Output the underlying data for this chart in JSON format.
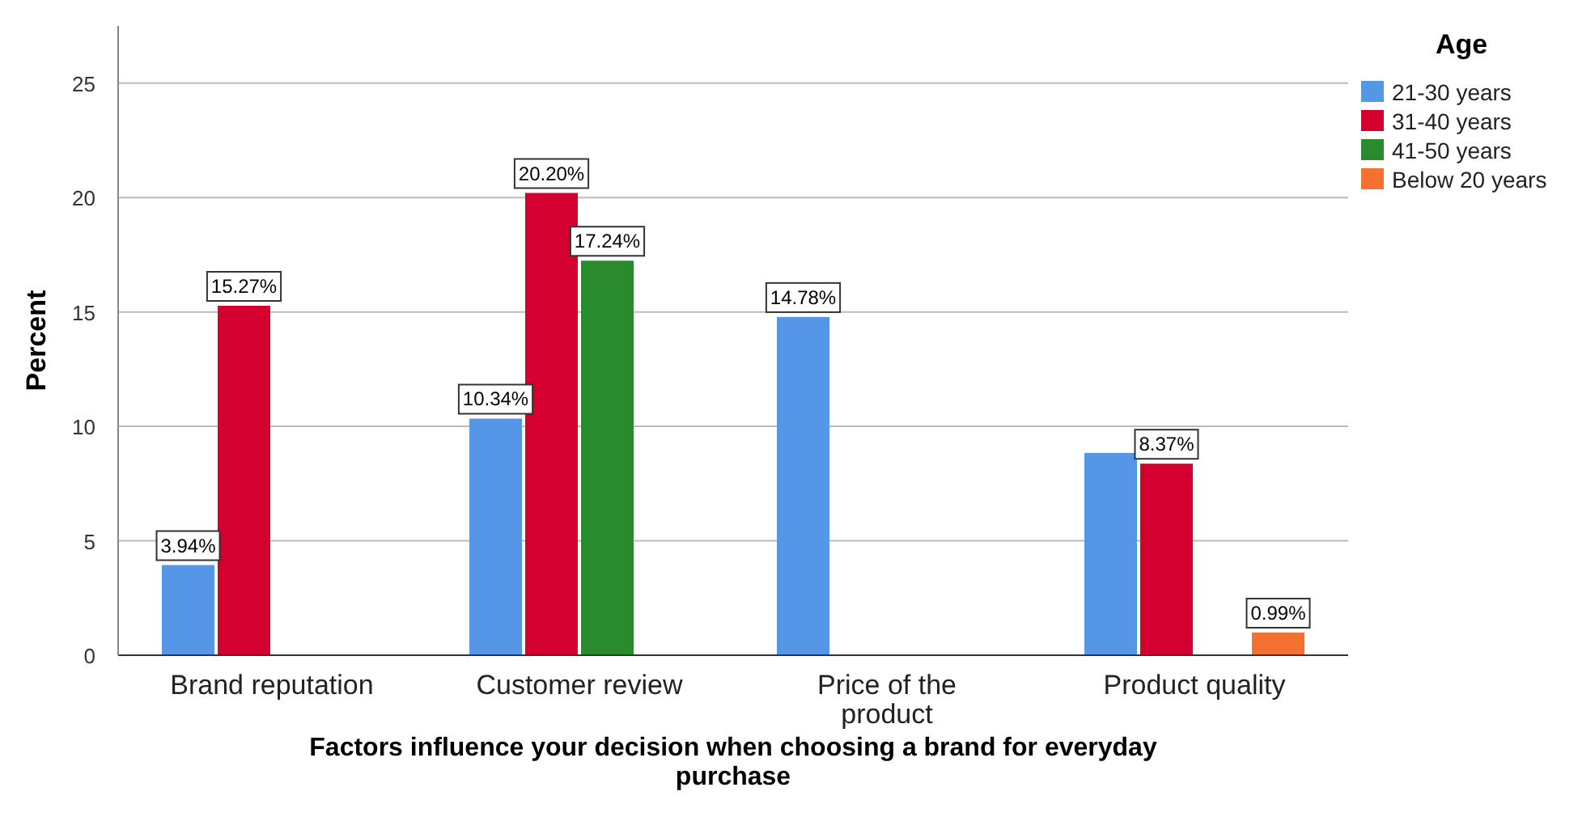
{
  "chart_data": {
    "type": "bar",
    "xlabel": "Factors influence your decision when choosing a brand for everyday purchase",
    "ylabel": "Percent",
    "legend_title": "Age",
    "categories": [
      "Brand reputation",
      "Customer review",
      "Price of the product",
      "Product quality"
    ],
    "series": [
      {
        "name": "21-30 years",
        "color": "#5596e6",
        "values": [
          3.94,
          10.34,
          14.78,
          8.84
        ],
        "value_labels": [
          "3.94%",
          "10.34%",
          "14.78%",
          null
        ]
      },
      {
        "name": "31-40 years",
        "color": "#d40030",
        "values": [
          15.27,
          20.2,
          null,
          8.37
        ],
        "value_labels": [
          "15.27%",
          "20.20%",
          null,
          "8.37%"
        ]
      },
      {
        "name": "41-50 years",
        "color": "#2a8a2e",
        "values": [
          null,
          17.24,
          null,
          null
        ],
        "value_labels": [
          null,
          "17.24%",
          null,
          null
        ]
      },
      {
        "name": "Below 20 years",
        "color": "#f47130",
        "values": [
          null,
          null,
          null,
          0.99
        ],
        "value_labels": [
          null,
          null,
          null,
          "0.99%"
        ]
      }
    ],
    "ylim": [
      0,
      27.5
    ],
    "yticks": [
      0,
      5,
      10,
      15,
      20,
      25
    ],
    "grid": "y",
    "legend": "top right"
  }
}
